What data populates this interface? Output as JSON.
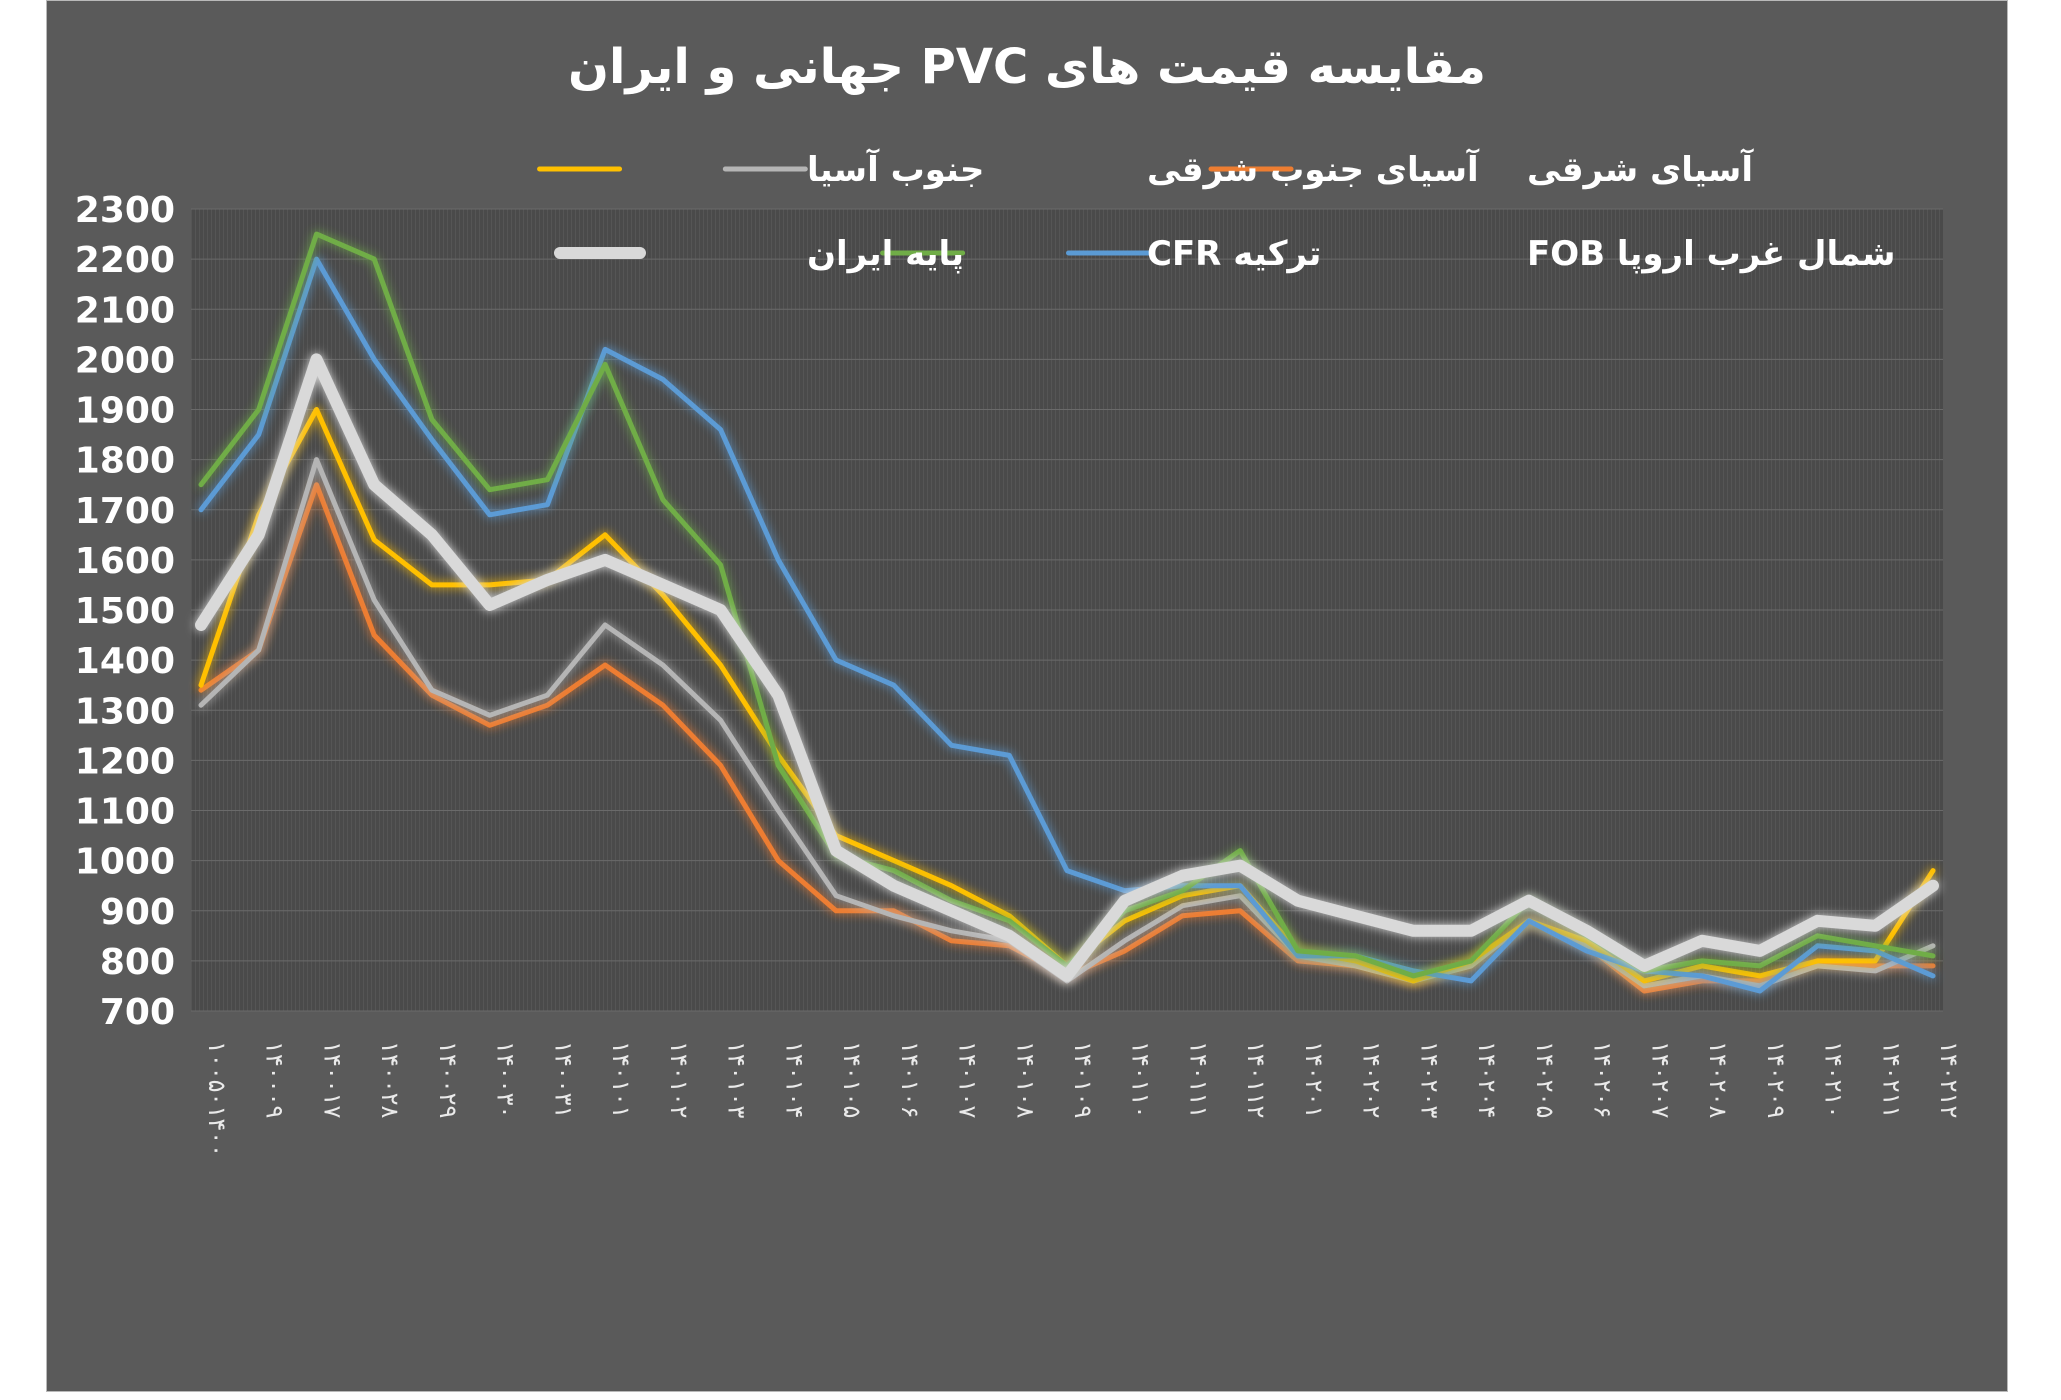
{
  "chart_data": {
    "type": "line",
    "title": "مقایسه قیمت های PVC جهانی و ایران",
    "ylim": [
      700,
      2300
    ],
    "y_ticks": [
      700,
      800,
      900,
      1000,
      1100,
      1200,
      1300,
      1400,
      1500,
      1600,
      1700,
      1800,
      1900,
      2000,
      2100,
      2200,
      2300
    ],
    "x_tick_labels": [
      "۱۰۰۵۰۱۴۰۰",
      "۱۴۰۰۰۹",
      "۱۴۰۰۱۷",
      "۱۴۰۰۲۸",
      "۱۴۰۰۲۹",
      "۱۴۰۰۳۰",
      "۱۴۰۰۳۱",
      "۱۴۰۱۰۱",
      "۱۴۰۱۰۲",
      "۱۴۰۱۰۳",
      "۱۴۰۱۰۴",
      "۱۴۰۱۰۵",
      "۱۴۰۱۰۶",
      "۱۴۰۱۰۷",
      "۱۴۰۱۰۸",
      "۱۴۰۱۰۹",
      "۱۴۰۱۱۰",
      "۱۴۰۱۱۱",
      "۱۴۰۱۱۲",
      "۱۴۰۲۰۱",
      "۱۴۰۲۰۲",
      "۱۴۰۲۰۳",
      "۱۴۰۲۰۴",
      "۱۴۰۲۰۵",
      "۱۴۰۲۰۶",
      "۱۴۰۲۰۷",
      "۱۴۰۲۰۸",
      "۱۴۰۲۰۹",
      "۱۴۰۲۱۰",
      "۱۴۰۲۱۱",
      "۱۴۰۲۱۲"
    ],
    "grid": true,
    "legend_position": "top",
    "n_points": 31,
    "series": [
      {
        "name": "آسیای شرقی",
        "color": "#ed7d31",
        "values": [
          1340,
          1420,
          1750,
          1450,
          1330,
          1270,
          1310,
          1390,
          1310,
          1190,
          1000,
          900,
          900,
          840,
          830,
          770,
          820,
          890,
          900,
          800,
          790,
          760,
          790,
          880,
          830,
          740,
          760,
          760,
          800,
          790,
          790
        ]
      },
      {
        "name": "آسیای جنوب شرقی",
        "color": "#b5b5b5",
        "values": [
          1310,
          1420,
          1800,
          1520,
          1340,
          1290,
          1330,
          1470,
          1390,
          1280,
          1100,
          930,
          890,
          860,
          840,
          760,
          840,
          910,
          930,
          810,
          790,
          760,
          790,
          880,
          830,
          750,
          770,
          750,
          790,
          780,
          830
        ]
      },
      {
        "name": "جنوب آسیا",
        "color": "#ffc000",
        "values": [
          1350,
          1690,
          1900,
          1640,
          1550,
          1550,
          1560,
          1650,
          1530,
          1390,
          1210,
          1050,
          1000,
          950,
          890,
          790,
          880,
          930,
          950,
          820,
          800,
          760,
          800,
          880,
          840,
          760,
          790,
          770,
          800,
          800,
          980
        ]
      },
      {
        "name": "شمال غرب اروپا FOB",
        "color": "#5b9bd5",
        "values": [
          1700,
          1850,
          2200,
          2000,
          1840,
          1690,
          1710,
          2020,
          1960,
          1860,
          1600,
          1400,
          1350,
          1230,
          1210,
          980,
          940,
          950,
          950,
          810,
          810,
          780,
          760,
          880,
          820,
          780,
          770,
          740,
          830,
          820,
          770
        ]
      },
      {
        "name": "ترکیه CFR",
        "color": "#70ad47",
        "values": [
          1750,
          1900,
          2250,
          2200,
          1880,
          1740,
          1760,
          1990,
          1720,
          1590,
          1190,
          1010,
          980,
          920,
          880,
          790,
          900,
          940,
          1020,
          820,
          810,
          770,
          800,
          920,
          850,
          780,
          800,
          790,
          850,
          830,
          810
        ]
      },
      {
        "name": "پایه ایران",
        "color": "#d9d9d9",
        "values": [
          1470,
          1650,
          2000,
          1750,
          1650,
          1510,
          1560,
          1600,
          1550,
          1500,
          1330,
          1020,
          950,
          900,
          850,
          770,
          920,
          970,
          990,
          920,
          890,
          860,
          860,
          920,
          860,
          790,
          840,
          820,
          880,
          870,
          950
        ]
      }
    ]
  }
}
